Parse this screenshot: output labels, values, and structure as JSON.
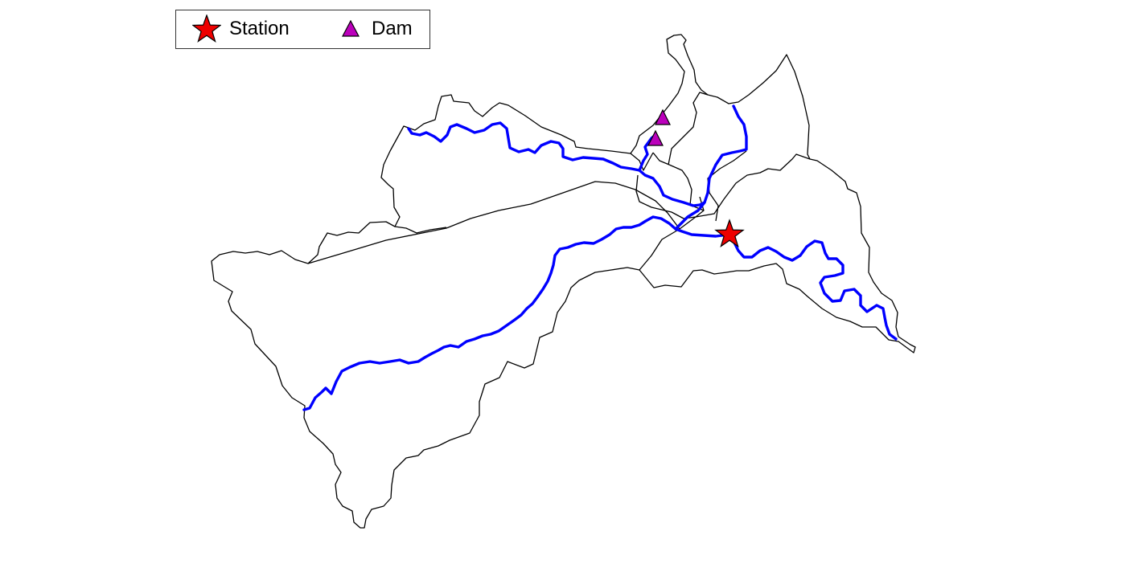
{
  "legend": {
    "items": [
      {
        "label": "Station",
        "symbol": "star-icon",
        "fill": "#ee0000"
      },
      {
        "label": "Dam",
        "symbol": "triangle-icon",
        "fill": "#bb00bb"
      }
    ]
  },
  "colors": {
    "river": "#0000ff",
    "boundary": "#000000",
    "station": "#ee0000",
    "dam": "#bb00bb"
  }
}
